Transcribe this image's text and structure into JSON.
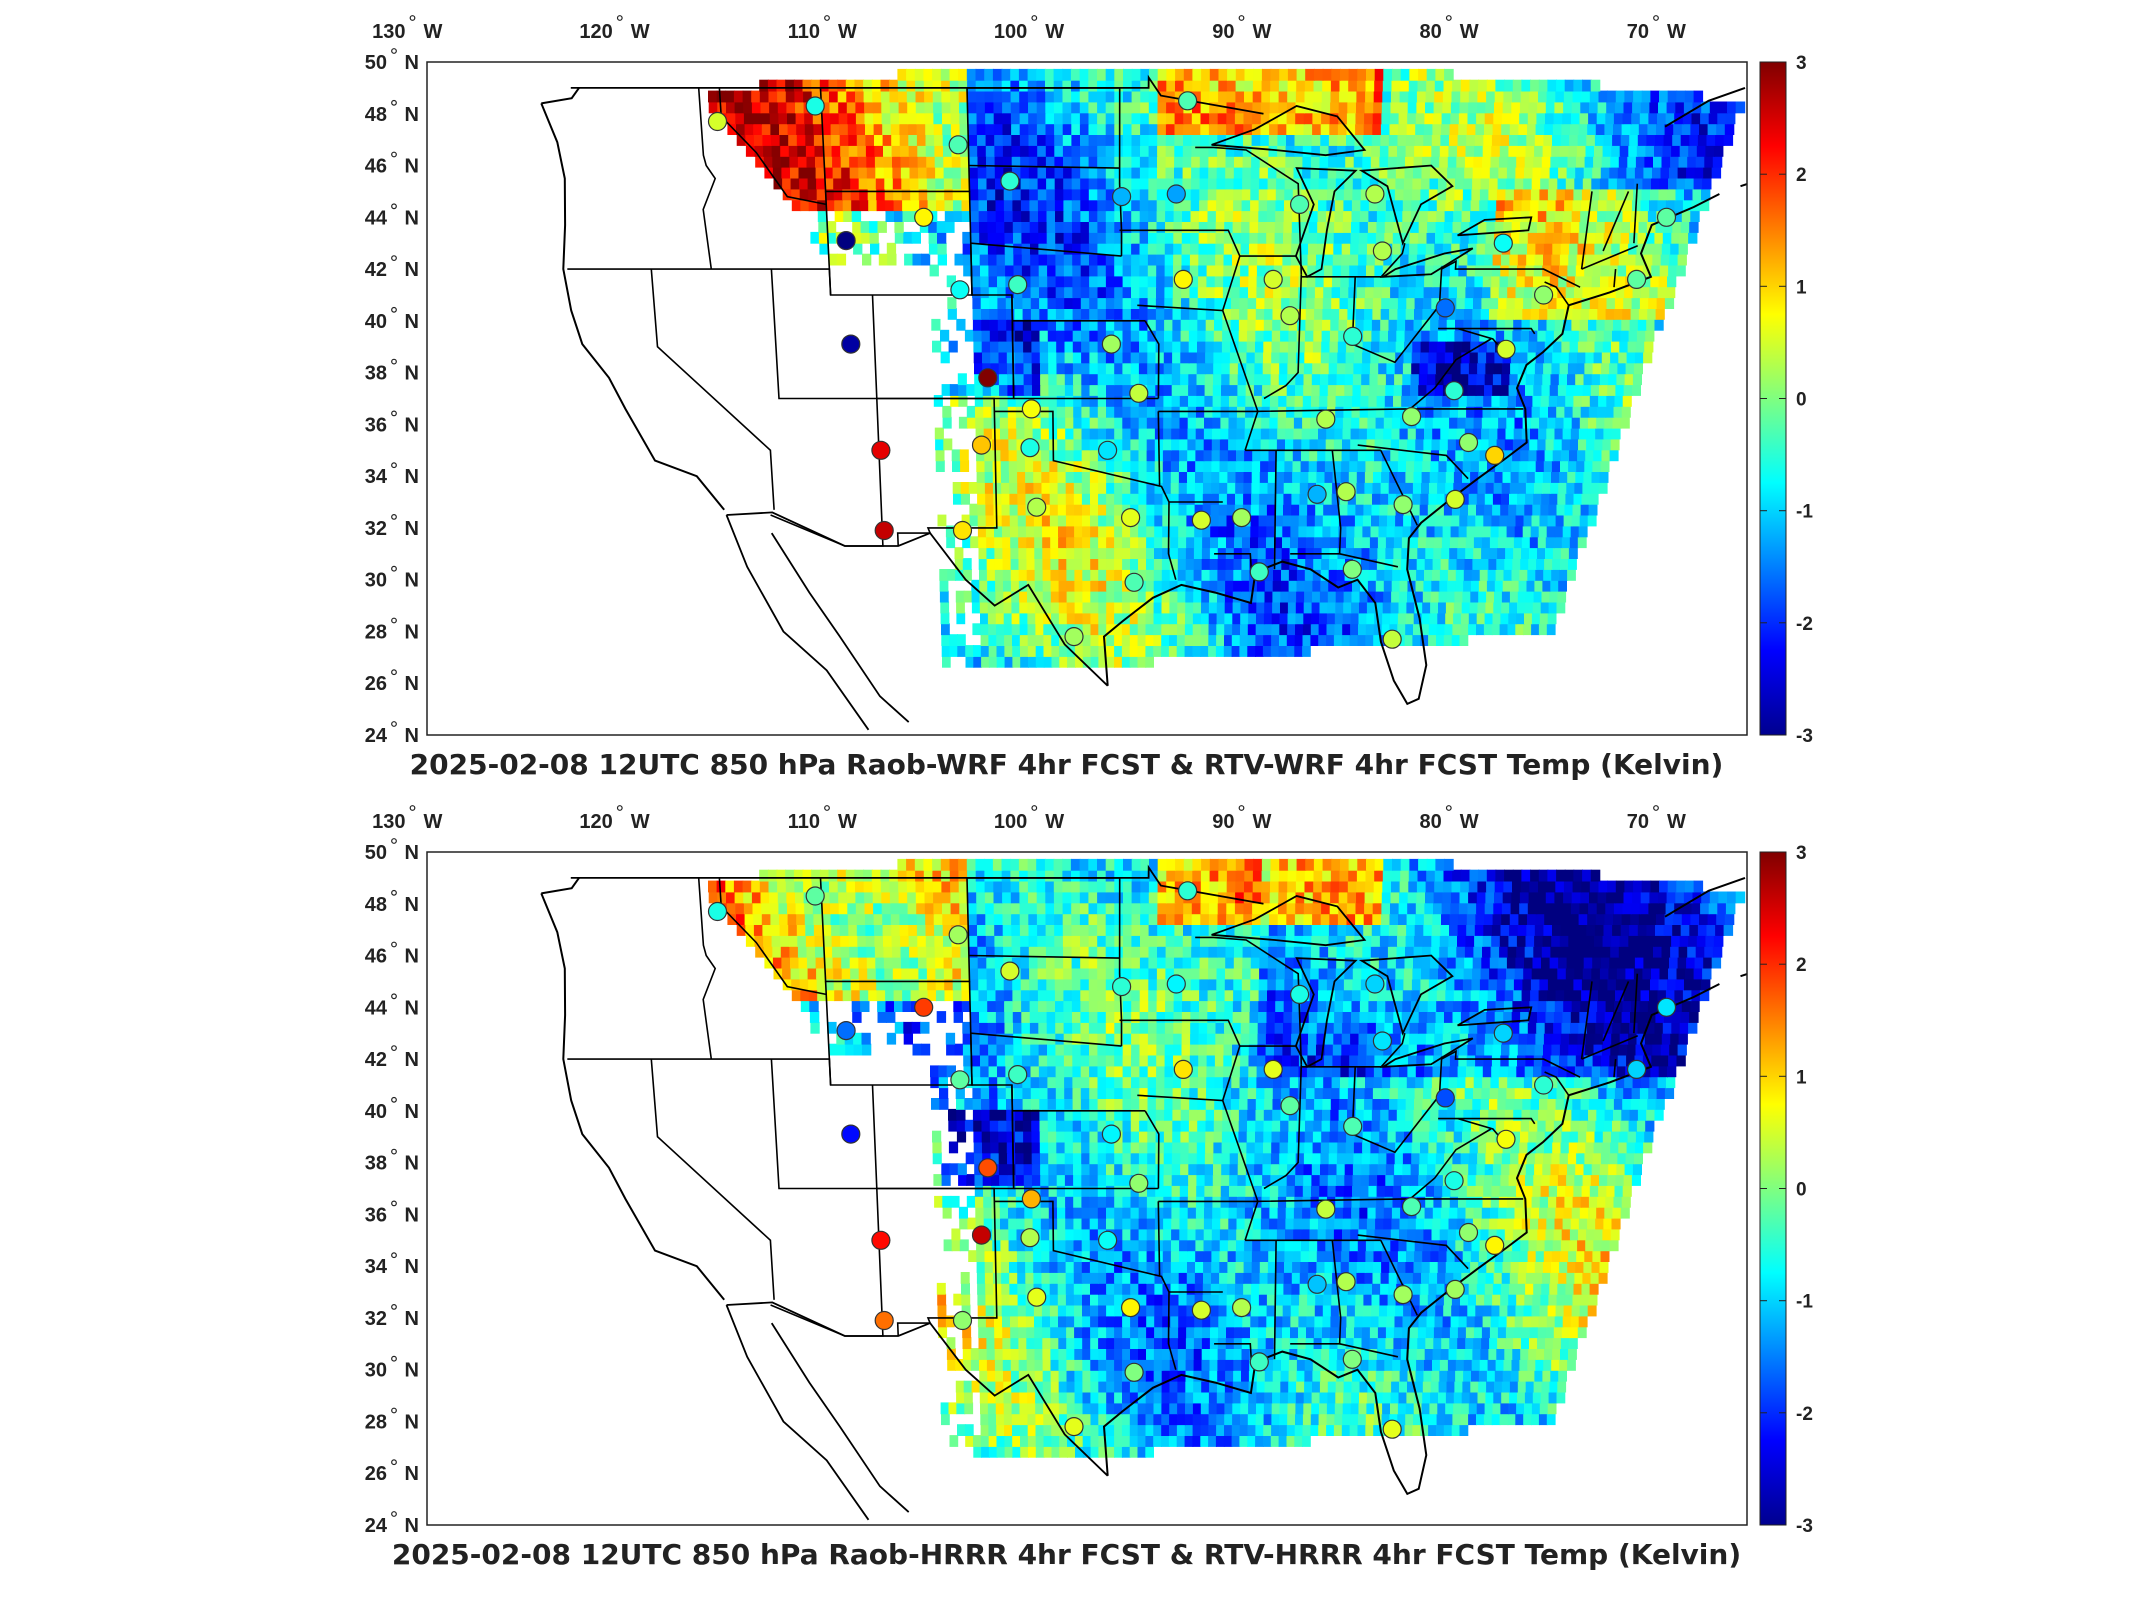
{
  "panels": [
    {
      "id": "top",
      "title": "2025-02-08 12UTC 850 hPa Raob-WRF 4hr FCST & RTV-WRF 4hr FCST Temp (Kelvin)",
      "stations": [
        {
          "lon": -116.2,
          "lat": 47.7,
          "v": 0.5
        },
        {
          "lon": -111.4,
          "lat": 48.3,
          "v": -0.6
        },
        {
          "lon": -104.5,
          "lat": 46.8,
          "v": -0.3
        },
        {
          "lon": -102.0,
          "lat": 45.4,
          "v": -0.5
        },
        {
          "lon": -106.3,
          "lat": 44.0,
          "v": 0.8
        },
        {
          "lon": -96.5,
          "lat": 44.8,
          "v": -1.2
        },
        {
          "lon": -110.2,
          "lat": 43.1,
          "v": -3.0
        },
        {
          "lon": -104.6,
          "lat": 41.2,
          "v": -0.7
        },
        {
          "lon": -110.2,
          "lat": 39.1,
          "v": -2.8
        },
        {
          "lon": -101.7,
          "lat": 41.4,
          "v": -0.4
        },
        {
          "lon": -97.0,
          "lat": 39.1,
          "v": 0.2
        },
        {
          "lon": -103.3,
          "lat": 37.8,
          "v": 3.0
        },
        {
          "lon": -95.6,
          "lat": 37.2,
          "v": 0.4
        },
        {
          "lon": -101.1,
          "lat": 36.6,
          "v": 0.7
        },
        {
          "lon": -103.7,
          "lat": 35.2,
          "v": 1.1
        },
        {
          "lon": -101.2,
          "lat": 35.1,
          "v": -0.6
        },
        {
          "lon": -108.9,
          "lat": 35.0,
          "v": 2.4
        },
        {
          "lon": -97.2,
          "lat": 35.0,
          "v": -0.9
        },
        {
          "lon": -100.9,
          "lat": 32.8,
          "v": 0.3
        },
        {
          "lon": -104.8,
          "lat": 31.9,
          "v": 0.9
        },
        {
          "lon": -108.9,
          "lat": 31.9,
          "v": 2.6
        },
        {
          "lon": -96.0,
          "lat": 32.4,
          "v": 0.6
        },
        {
          "lon": -99.0,
          "lat": 27.8,
          "v": 0.2
        },
        {
          "lon": -92.3,
          "lat": 32.3,
          "v": 0.5
        },
        {
          "lon": -95.8,
          "lat": 29.9,
          "v": -0.3
        },
        {
          "lon": -89.2,
          "lat": 30.3,
          "v": -0.4
        },
        {
          "lon": -90.2,
          "lat": 32.4,
          "v": 0.2
        },
        {
          "lon": -86.3,
          "lat": 33.3,
          "v": -1.2
        },
        {
          "lon": -84.8,
          "lat": 33.4,
          "v": 0.3
        },
        {
          "lon": -81.8,
          "lat": 32.9,
          "v": 0.1
        },
        {
          "lon": -84.3,
          "lat": 30.4,
          "v": 0.0
        },
        {
          "lon": -82.0,
          "lat": 27.7,
          "v": 0.4
        },
        {
          "lon": -86.0,
          "lat": 36.2,
          "v": 0.3
        },
        {
          "lon": -88.0,
          "lat": 40.2,
          "v": 0.3
        },
        {
          "lon": -88.9,
          "lat": 41.6,
          "v": 0.5
        },
        {
          "lon": -84.8,
          "lat": 39.4,
          "v": -0.5
        },
        {
          "lon": -80.2,
          "lat": 40.5,
          "v": -1.6
        },
        {
          "lon": -83.5,
          "lat": 42.7,
          "v": 0.3
        },
        {
          "lon": -84.0,
          "lat": 44.9,
          "v": 0.3
        },
        {
          "lon": -87.7,
          "lat": 44.5,
          "v": -0.3
        },
        {
          "lon": -93.8,
          "lat": 44.9,
          "v": -1.3
        },
        {
          "lon": -93.3,
          "lat": 48.5,
          "v": -0.3
        },
        {
          "lon": -77.0,
          "lat": 38.9,
          "v": 0.5
        },
        {
          "lon": -79.5,
          "lat": 37.3,
          "v": -0.5
        },
        {
          "lon": -81.6,
          "lat": 36.3,
          "v": 0.1
        },
        {
          "lon": -78.6,
          "lat": 35.3,
          "v": 0.1
        },
        {
          "lon": -77.2,
          "lat": 34.8,
          "v": 1.0
        },
        {
          "lon": -79.1,
          "lat": 33.1,
          "v": 0.5
        },
        {
          "lon": -75.3,
          "lat": 41.0,
          "v": 0.1
        },
        {
          "lon": -77.5,
          "lat": 43.0,
          "v": -0.7
        },
        {
          "lon": -70.7,
          "lat": 41.6,
          "v": -0.2
        },
        {
          "lon": -69.5,
          "lat": 44.0,
          "v": -0.2
        },
        {
          "lon": -93.4,
          "lat": 41.6,
          "v": 0.8
        }
      ]
    },
    {
      "id": "bottom",
      "title": "2025-02-08 12UTC 850 hPa Raob-HRRR 4hr FCST & RTV-HRRR 4hr FCST Temp (Kelvin)",
      "stations": [
        {
          "lon": -116.2,
          "lat": 47.7,
          "v": -0.6
        },
        {
          "lon": -111.4,
          "lat": 48.3,
          "v": -0.2
        },
        {
          "lon": -104.5,
          "lat": 46.8,
          "v": 0.2
        },
        {
          "lon": -102.0,
          "lat": 45.4,
          "v": 0.5
        },
        {
          "lon": -106.3,
          "lat": 44.0,
          "v": 1.9
        },
        {
          "lon": -96.5,
          "lat": 44.8,
          "v": -0.5
        },
        {
          "lon": -110.2,
          "lat": 43.1,
          "v": -1.6
        },
        {
          "lon": -104.6,
          "lat": 41.2,
          "v": -0.2
        },
        {
          "lon": -110.2,
          "lat": 39.1,
          "v": -2.2
        },
        {
          "lon": -101.7,
          "lat": 41.4,
          "v": -0.4
        },
        {
          "lon": -97.0,
          "lat": 39.1,
          "v": -0.8
        },
        {
          "lon": -103.3,
          "lat": 37.8,
          "v": 1.8
        },
        {
          "lon": -95.6,
          "lat": 37.2,
          "v": 0.1
        },
        {
          "lon": -101.1,
          "lat": 36.6,
          "v": 1.2
        },
        {
          "lon": -103.7,
          "lat": 35.2,
          "v": 2.6
        },
        {
          "lon": -101.2,
          "lat": 35.1,
          "v": 0.3
        },
        {
          "lon": -108.9,
          "lat": 35.0,
          "v": 2.2
        },
        {
          "lon": -97.2,
          "lat": 35.0,
          "v": -0.7
        },
        {
          "lon": -100.9,
          "lat": 32.8,
          "v": 0.6
        },
        {
          "lon": -104.8,
          "lat": 31.9,
          "v": 0.1
        },
        {
          "lon": -108.9,
          "lat": 31.9,
          "v": 1.6
        },
        {
          "lon": -96.0,
          "lat": 32.4,
          "v": 0.8
        },
        {
          "lon": -99.0,
          "lat": 27.8,
          "v": 0.6
        },
        {
          "lon": -92.3,
          "lat": 32.3,
          "v": 0.5
        },
        {
          "lon": -95.8,
          "lat": 29.9,
          "v": 0.0
        },
        {
          "lon": -89.2,
          "lat": 30.3,
          "v": -0.4
        },
        {
          "lon": -90.2,
          "lat": 32.4,
          "v": 0.3
        },
        {
          "lon": -86.3,
          "lat": 33.3,
          "v": -1.1
        },
        {
          "lon": -84.8,
          "lat": 33.4,
          "v": 0.3
        },
        {
          "lon": -81.8,
          "lat": 32.9,
          "v": 0.2
        },
        {
          "lon": -84.3,
          "lat": 30.4,
          "v": 0.0
        },
        {
          "lon": -82.0,
          "lat": 27.7,
          "v": 0.6
        },
        {
          "lon": -86.0,
          "lat": 36.2,
          "v": 0.4
        },
        {
          "lon": -88.0,
          "lat": 40.2,
          "v": -0.2
        },
        {
          "lon": -88.9,
          "lat": 41.6,
          "v": 0.6
        },
        {
          "lon": -84.8,
          "lat": 39.4,
          "v": -0.3
        },
        {
          "lon": -80.2,
          "lat": 40.5,
          "v": -1.8
        },
        {
          "lon": -83.5,
          "lat": 42.7,
          "v": -0.9
        },
        {
          "lon": -84.0,
          "lat": 44.9,
          "v": -1.0
        },
        {
          "lon": -87.7,
          "lat": 44.5,
          "v": -0.6
        },
        {
          "lon": -93.8,
          "lat": 44.9,
          "v": -0.8
        },
        {
          "lon": -93.3,
          "lat": 48.5,
          "v": -0.5
        },
        {
          "lon": -77.0,
          "lat": 38.9,
          "v": 0.7
        },
        {
          "lon": -79.5,
          "lat": 37.3,
          "v": -0.6
        },
        {
          "lon": -81.6,
          "lat": 36.3,
          "v": -0.3
        },
        {
          "lon": -78.6,
          "lat": 35.3,
          "v": 0.1
        },
        {
          "lon": -77.2,
          "lat": 34.8,
          "v": 0.8
        },
        {
          "lon": -79.1,
          "lat": 33.1,
          "v": 0.2
        },
        {
          "lon": -75.3,
          "lat": 41.0,
          "v": -0.5
        },
        {
          "lon": -77.5,
          "lat": 43.0,
          "v": -1.0
        },
        {
          "lon": -70.7,
          "lat": 41.6,
          "v": -1.0
        },
        {
          "lon": -69.5,
          "lat": 44.0,
          "v": -0.9
        },
        {
          "lon": -93.4,
          "lat": 41.6,
          "v": 0.9
        }
      ]
    }
  ],
  "lon_ticks": [
    {
      "value": -130,
      "label": "130",
      "hemi": "W"
    },
    {
      "value": -120,
      "label": "120",
      "hemi": "W"
    },
    {
      "value": -110,
      "label": "110",
      "hemi": "W"
    },
    {
      "value": -100,
      "label": "100",
      "hemi": "W"
    },
    {
      "value": -90,
      "label": "90",
      "hemi": "W"
    },
    {
      "value": -80,
      "label": "80",
      "hemi": "W"
    },
    {
      "value": -70,
      "label": "70",
      "hemi": "W"
    }
  ],
  "lat_ticks": [
    {
      "value": 50,
      "label": "50",
      "hemi": "N"
    },
    {
      "value": 48,
      "label": "48",
      "hemi": "N"
    },
    {
      "value": 46,
      "label": "46",
      "hemi": "N"
    },
    {
      "value": 44,
      "label": "44",
      "hemi": "N"
    },
    {
      "value": 42,
      "label": "42",
      "hemi": "N"
    },
    {
      "value": 40,
      "label": "40",
      "hemi": "N"
    },
    {
      "value": 38,
      "label": "38",
      "hemi": "N"
    },
    {
      "value": 36,
      "label": "36",
      "hemi": "N"
    },
    {
      "value": 34,
      "label": "34",
      "hemi": "N"
    },
    {
      "value": 32,
      "label": "32",
      "hemi": "N"
    },
    {
      "value": 30,
      "label": "30",
      "hemi": "N"
    },
    {
      "value": 28,
      "label": "28",
      "hemi": "N"
    },
    {
      "value": 26,
      "label": "26",
      "hemi": "N"
    },
    {
      "value": 24,
      "label": "24",
      "hemi": "N"
    }
  ],
  "colorbar": {
    "min": -3,
    "max": 3,
    "colormap": "jet",
    "ticks": [
      {
        "value": 3,
        "label": "3"
      },
      {
        "value": 2,
        "label": "2"
      },
      {
        "value": 1,
        "label": "1"
      },
      {
        "value": 0,
        "label": "0"
      },
      {
        "value": -1,
        "label": "-1"
      },
      {
        "value": -2,
        "label": "-2"
      },
      {
        "value": -3,
        "label": "-3"
      }
    ]
  },
  "colors": {
    "border": "#000000",
    "station_outline": "#333333",
    "background": "#ffffff"
  }
}
